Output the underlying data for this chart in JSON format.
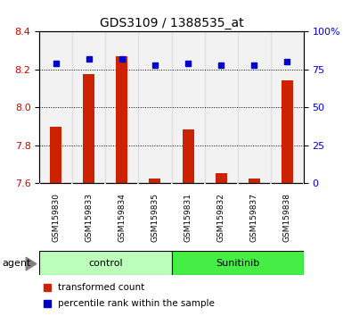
{
  "title": "GDS3109 / 1388535_at",
  "samples": [
    "GSM159830",
    "GSM159833",
    "GSM159834",
    "GSM159835",
    "GSM159831",
    "GSM159832",
    "GSM159837",
    "GSM159838"
  ],
  "transformed_count": [
    7.9,
    8.175,
    8.27,
    7.625,
    7.885,
    7.655,
    7.625,
    8.145
  ],
  "percentile_rank": [
    79,
    82,
    82,
    78,
    79,
    78,
    78,
    80
  ],
  "bar_color": "#cc2200",
  "dot_color": "#0000cc",
  "ylim_left": [
    7.6,
    8.4
  ],
  "ylim_right": [
    0,
    100
  ],
  "yticks_left": [
    7.6,
    7.8,
    8.0,
    8.2,
    8.4
  ],
  "yticks_right": [
    0,
    25,
    50,
    75,
    100
  ],
  "ytick_labels_right": [
    "0",
    "25",
    "50",
    "75",
    "100%"
  ],
  "grid_lines": [
    7.8,
    8.0,
    8.2
  ],
  "groups": [
    {
      "label": "control",
      "indices": [
        0,
        1,
        2,
        3
      ],
      "color": "#bbffbb"
    },
    {
      "label": "Sunitinib",
      "indices": [
        4,
        5,
        6,
        7
      ],
      "color": "#44ee44"
    }
  ],
  "agent_label": "agent",
  "legend_items": [
    {
      "label": "transformed count",
      "color": "#cc2200"
    },
    {
      "label": "percentile rank within the sample",
      "color": "#0000cc"
    }
  ],
  "bar_width": 0.35,
  "bar_baseline": 7.6,
  "ylabel_color_left": "#cc0000",
  "ylabel_color_right": "#0000cc",
  "tick_area_bg": "#cccccc",
  "plot_bg": "#ffffff"
}
